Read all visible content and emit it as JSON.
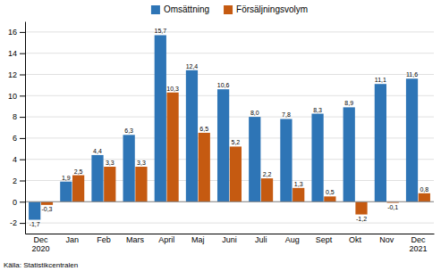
{
  "chart_data": {
    "type": "bar",
    "categories": [
      "Dec\n2020",
      "Jan",
      "Feb",
      "Mars",
      "April",
      "Maj",
      "Juni",
      "Juli",
      "Aug",
      "Sept",
      "Okt",
      "Nov",
      "Dec\n2021"
    ],
    "series": [
      {
        "name": "Omsättning",
        "color": "#2E75B6",
        "values": [
          -1.7,
          1.9,
          4.4,
          6.3,
          15.7,
          12.4,
          10.6,
          8.0,
          7.8,
          8.3,
          8.9,
          11.1,
          11.6
        ],
        "value_labels": [
          "-1,7",
          "1,9",
          "4,4",
          "6,3",
          "15,7",
          "12,4",
          "10,6",
          "8,0",
          "7,8",
          "8,3",
          "8,9",
          "11,1",
          "11,6"
        ]
      },
      {
        "name": "Försäljningsvolym",
        "color": "#C55A11",
        "values": [
          -0.3,
          2.5,
          3.3,
          3.3,
          10.3,
          6.5,
          5.2,
          2.2,
          1.3,
          0.5,
          -1.2,
          -0.1,
          0.8
        ],
        "value_labels": [
          "-0,3",
          "2,5",
          "3,3",
          "3,3",
          "10,3",
          "6,5",
          "5,2",
          "2,2",
          "1,3",
          "0,5",
          "-1,2",
          "-0,1",
          "0,8"
        ]
      }
    ],
    "ylim": [
      -3,
      17
    ],
    "yticks": [
      -2,
      0,
      2,
      4,
      6,
      8,
      10,
      12,
      14,
      16
    ],
    "grid": true,
    "legend": "top",
    "data_labels": true,
    "annotations": [
      "Källa: Statistikcentralen"
    ]
  }
}
